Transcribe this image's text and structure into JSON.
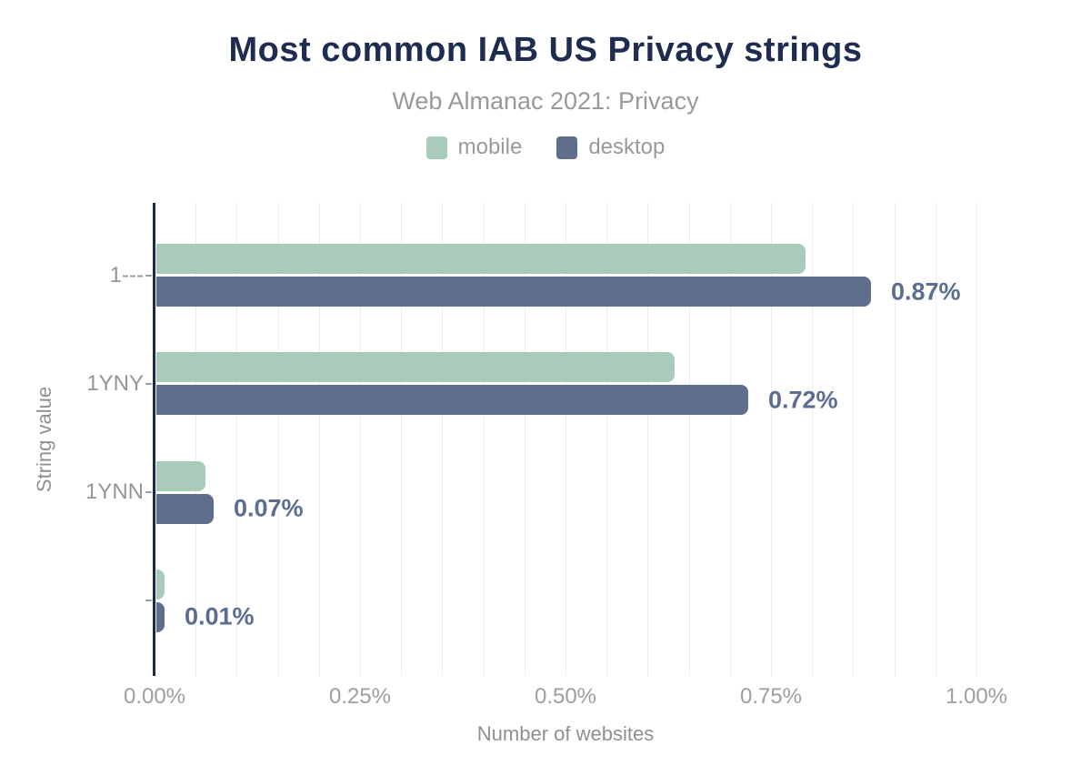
{
  "title": "Most common IAB US Privacy strings",
  "subtitle": "Web Almanac 2021: Privacy",
  "chart_data": {
    "type": "bar",
    "orientation": "horizontal",
    "title": "Most common IAB US Privacy strings",
    "subtitle": "Web Almanac 2021: Privacy",
    "categories": [
      "1---",
      "1YNY",
      "1YNN",
      ""
    ],
    "series": [
      {
        "name": "mobile",
        "color": "#a9cbba",
        "values": [
          0.79,
          0.63,
          0.06,
          0.01
        ]
      },
      {
        "name": "desktop",
        "color": "#5e6e8b",
        "values": [
          0.87,
          0.72,
          0.07,
          0.01
        ]
      }
    ],
    "data_labels": [
      "0.87%",
      "0.72%",
      "0.07%",
      "0.01%"
    ],
    "xlabel": "Number of websites",
    "ylabel": "String value",
    "xlim": [
      0,
      1.0
    ],
    "x_ticks": [
      {
        "value": 0.0,
        "label": "0.00%"
      },
      {
        "value": 0.25,
        "label": "0.25%"
      },
      {
        "value": 0.5,
        "label": "0.50%"
      },
      {
        "value": 0.75,
        "label": "0.75%"
      },
      {
        "value": 1.0,
        "label": "1.00%"
      }
    ],
    "minor_grid_step": 0.05,
    "grid": true,
    "legend_position": "top"
  },
  "colors": {
    "background": "#ffffff",
    "title": "#1e2c4f",
    "subtitle": "#97999d",
    "legend_text": "#97999d",
    "category_label": "#92959a",
    "tick_label": "#9b9ea3",
    "axis_title": "#8d9095",
    "axis_line": "#1b2b47",
    "gridline": "#ededf0",
    "value_label": "#5b6d90",
    "mobile": "#a9cbba",
    "desktop": "#5e6e8b"
  }
}
